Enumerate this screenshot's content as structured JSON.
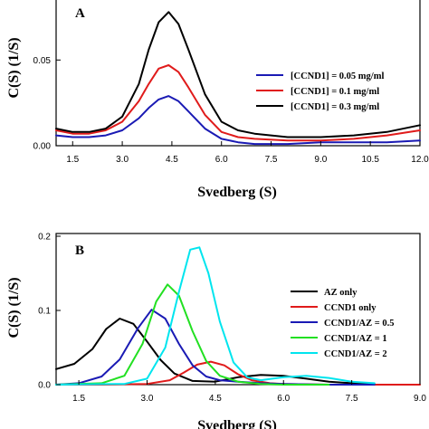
{
  "chart_data": [
    {
      "type": "line",
      "panel_label": "A",
      "xlabel": "Svedberg (S)",
      "ylabel": "C(S) (1/S)",
      "xlim": [
        1.0,
        12.0
      ],
      "ylim": [
        0.0,
        0.085
      ],
      "xticks": [
        "1.5",
        "3.0",
        "4.5",
        "6.0",
        "7.5",
        "9.0",
        "10.5",
        "12.0"
      ],
      "xtick_values": [
        1.5,
        3.0,
        4.5,
        6.0,
        7.5,
        9.0,
        10.5,
        12.0
      ],
      "yticks": [
        "0.00",
        "0.05"
      ],
      "ytick_values": [
        0.0,
        0.05
      ],
      "legend_position": "right",
      "series": [
        {
          "name": "[CCND1] = 0.05 mg/ml",
          "color": "#1a1ab4",
          "x": [
            1.0,
            1.5,
            2.0,
            2.5,
            3.0,
            3.5,
            3.8,
            4.1,
            4.4,
            4.7,
            5.0,
            5.5,
            6.0,
            6.5,
            7.0,
            8.0,
            9.0,
            10.0,
            11.0,
            12.0
          ],
          "y": [
            0.006,
            0.005,
            0.005,
            0.006,
            0.009,
            0.016,
            0.022,
            0.027,
            0.029,
            0.026,
            0.02,
            0.01,
            0.004,
            0.002,
            0.001,
            0.001,
            0.002,
            0.002,
            0.002,
            0.003
          ]
        },
        {
          "name": "[CCND1] = 0.1 mg/ml",
          "color": "#e01b1b",
          "x": [
            1.0,
            1.5,
            2.0,
            2.5,
            3.0,
            3.5,
            3.8,
            4.1,
            4.4,
            4.7,
            5.0,
            5.5,
            6.0,
            6.5,
            7.0,
            8.0,
            9.0,
            10.0,
            11.0,
            12.0
          ],
          "y": [
            0.009,
            0.007,
            0.007,
            0.009,
            0.014,
            0.026,
            0.036,
            0.045,
            0.047,
            0.043,
            0.034,
            0.018,
            0.008,
            0.005,
            0.004,
            0.003,
            0.003,
            0.004,
            0.006,
            0.009
          ]
        },
        {
          "name": "[CCND1] = 0.3 mg/ml",
          "color": "#000000",
          "x": [
            1.0,
            1.5,
            2.0,
            2.5,
            3.0,
            3.5,
            3.8,
            4.1,
            4.4,
            4.7,
            5.0,
            5.5,
            6.0,
            6.5,
            7.0,
            8.0,
            9.0,
            10.0,
            11.0,
            12.0
          ],
          "y": [
            0.01,
            0.008,
            0.008,
            0.01,
            0.017,
            0.036,
            0.056,
            0.072,
            0.078,
            0.071,
            0.056,
            0.03,
            0.014,
            0.009,
            0.007,
            0.005,
            0.005,
            0.006,
            0.008,
            0.012
          ]
        }
      ]
    },
    {
      "type": "line",
      "panel_label": "B",
      "xlabel": "Svedberg (S)",
      "ylabel": "C(S) (1/S)",
      "xlim": [
        1.0,
        9.0
      ],
      "ylim": [
        0.0,
        0.2
      ],
      "xticks": [
        "1.5",
        "3.0",
        "4.5",
        "6.0",
        "7.5",
        "9.0"
      ],
      "xtick_values": [
        1.5,
        3.0,
        4.5,
        6.0,
        7.5,
        9.0
      ],
      "yticks": [
        "0.0",
        "0.1",
        "0.2"
      ],
      "ytick_values": [
        0.0,
        0.1,
        0.2
      ],
      "legend_position": "right",
      "series": [
        {
          "name": "AZ only",
          "color": "#000000",
          "x": [
            1.0,
            1.4,
            1.8,
            2.1,
            2.4,
            2.7,
            3.0,
            3.3,
            3.6,
            4.0,
            4.5,
            5.0,
            5.5,
            6.0,
            6.5,
            7.0,
            7.5,
            8.0
          ],
          "y": [
            0.021,
            0.028,
            0.048,
            0.075,
            0.089,
            0.082,
            0.058,
            0.033,
            0.015,
            0.005,
            0.004,
            0.01,
            0.013,
            0.012,
            0.008,
            0.004,
            0.002,
            0.001
          ]
        },
        {
          "name": "CCND1 only",
          "color": "#e01b1b",
          "x": [
            1.0,
            2.0,
            3.0,
            3.5,
            3.8,
            4.1,
            4.4,
            4.7,
            5.0,
            5.3,
            5.7,
            6.0,
            7.0,
            8.0,
            9.0
          ],
          "y": [
            0.0,
            0.0,
            0.001,
            0.006,
            0.016,
            0.027,
            0.031,
            0.026,
            0.014,
            0.006,
            0.002,
            0.001,
            0.0,
            0.0,
            0.0
          ]
        },
        {
          "name": "CCND1/AZ = 0.5",
          "color": "#1a1ab4",
          "x": [
            1.0,
            1.5,
            2.0,
            2.4,
            2.8,
            3.1,
            3.4,
            3.7,
            4.0,
            4.3,
            4.6,
            5.0,
            5.5,
            6.0,
            7.0,
            8.0
          ],
          "y": [
            0.0,
            0.002,
            0.011,
            0.034,
            0.076,
            0.101,
            0.089,
            0.055,
            0.026,
            0.011,
            0.006,
            0.004,
            0.002,
            0.001,
            0.0,
            0.0
          ]
        },
        {
          "name": "CCND1/AZ = 1",
          "color": "#22e022",
          "x": [
            1.0,
            2.0,
            2.5,
            2.9,
            3.2,
            3.45,
            3.7,
            4.0,
            4.3,
            4.6,
            5.0,
            5.5,
            6.0,
            7.0
          ],
          "y": [
            0.0,
            0.002,
            0.012,
            0.055,
            0.112,
            0.135,
            0.12,
            0.072,
            0.032,
            0.012,
            0.004,
            0.001,
            0.0,
            0.0
          ]
        },
        {
          "name": "CCND1/AZ = 2",
          "color": "#00e5ee",
          "x": [
            1.0,
            2.5,
            3.0,
            3.4,
            3.7,
            3.95,
            4.15,
            4.35,
            4.6,
            4.9,
            5.2,
            5.5,
            6.0,
            6.5,
            7.0,
            7.5,
            8.0
          ],
          "y": [
            0.0,
            0.001,
            0.008,
            0.05,
            0.125,
            0.182,
            0.185,
            0.15,
            0.085,
            0.03,
            0.01,
            0.006,
            0.01,
            0.012,
            0.009,
            0.004,
            0.002
          ]
        }
      ]
    }
  ]
}
